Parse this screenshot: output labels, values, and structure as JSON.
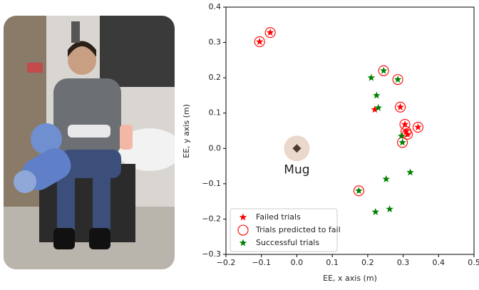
{
  "chart_data": {
    "type": "scatter",
    "xlabel": "EE, x axis (m)",
    "ylabel": "EE, y axis (m)",
    "xlim": [
      -0.2,
      0.5
    ],
    "ylim": [
      -0.3,
      0.4
    ],
    "xticks": [
      {
        "value": -0.2,
        "label": "−0.2"
      },
      {
        "value": -0.1,
        "label": "−0.1"
      },
      {
        "value": 0,
        "label": "0.0"
      },
      0.1,
      0.2,
      0.3,
      0.4,
      0.5
    ],
    "yticks": [
      {
        "value": -0.3,
        "label": "−0.3"
      },
      {
        "value": -0.2,
        "label": "−0.2"
      },
      {
        "value": -0.1,
        "label": "−0.1"
      },
      {
        "value": 0,
        "label": "0.0"
      },
      0.1,
      0.2,
      0.3,
      0.4
    ],
    "legend": "lower left",
    "series": [
      {
        "name": "Failed trials",
        "color": "#ff0000",
        "marker": "star",
        "x": [
          -0.105,
          -0.075,
          0.22,
          0.292,
          0.305,
          0.308,
          0.312,
          0.342
        ],
        "values": [
          0.302,
          0.328,
          0.11,
          0.117,
          0.068,
          0.048,
          0.04,
          0.06
        ]
      },
      {
        "name": "Trials predicted to fail",
        "color": "#ff0000",
        "marker": "circle",
        "x": [
          -0.105,
          -0.075,
          0.245,
          0.285,
          0.292,
          0.305,
          0.308,
          0.312,
          0.342,
          0.298,
          0.175
        ],
        "values": [
          0.302,
          0.328,
          0.22,
          0.195,
          0.117,
          0.068,
          0.048,
          0.04,
          0.06,
          0.017,
          -0.12
        ]
      },
      {
        "name": "Successful trials",
        "color": "#008000",
        "marker": "star",
        "x": [
          0.21,
          0.245,
          0.285,
          0.225,
          0.23,
          0.295,
          0.298,
          0.175,
          0.32,
          0.252,
          0.262,
          0.222
        ],
        "values": [
          0.2,
          0.22,
          0.195,
          0.15,
          0.115,
          0.035,
          0.017,
          -0.12,
          -0.068,
          -0.087,
          -0.172,
          -0.18
        ]
      }
    ],
    "annotations": [
      {
        "text": "Mug",
        "x": 0,
        "y": 0
      }
    ]
  }
}
